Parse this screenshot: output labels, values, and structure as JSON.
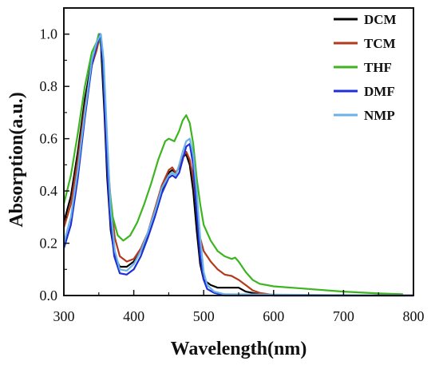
{
  "chart_data": {
    "type": "line",
    "xlabel": "Wavelength(nm)",
    "ylabel": "Absorption(a.u.)",
    "xlim": [
      300,
      800
    ],
    "ylim": [
      0,
      1.1
    ],
    "x_ticks": [
      300,
      400,
      500,
      600,
      700,
      800
    ],
    "x_tick_labels": [
      "300",
      "400",
      "500",
      "600",
      "700",
      "800"
    ],
    "y_ticks": [
      0,
      0.2,
      0.4,
      0.6,
      0.8,
      1.0
    ],
    "y_tick_labels": [
      "0.0",
      "0.2",
      "0.4",
      "0.6",
      "0.8",
      "1.0"
    ],
    "grid": false,
    "legend_position": "top-right",
    "series": [
      {
        "name": "DCM",
        "color": "#000000",
        "points": [
          [
            300,
            0.28
          ],
          [
            310,
            0.38
          ],
          [
            320,
            0.55
          ],
          [
            330,
            0.75
          ],
          [
            340,
            0.9
          ],
          [
            347,
            0.96
          ],
          [
            350,
            1.0
          ],
          [
            353,
            0.96
          ],
          [
            358,
            0.7
          ],
          [
            362,
            0.45
          ],
          [
            367,
            0.25
          ],
          [
            373,
            0.15
          ],
          [
            380,
            0.11
          ],
          [
            390,
            0.11
          ],
          [
            400,
            0.13
          ],
          [
            410,
            0.17
          ],
          [
            420,
            0.23
          ],
          [
            430,
            0.31
          ],
          [
            440,
            0.4
          ],
          [
            450,
            0.47
          ],
          [
            455,
            0.48
          ],
          [
            460,
            0.47
          ],
          [
            465,
            0.49
          ],
          [
            470,
            0.53
          ],
          [
            475,
            0.54
          ],
          [
            480,
            0.5
          ],
          [
            485,
            0.4
          ],
          [
            490,
            0.25
          ],
          [
            495,
            0.12
          ],
          [
            500,
            0.06
          ],
          [
            510,
            0.04
          ],
          [
            520,
            0.03
          ],
          [
            540,
            0.03
          ],
          [
            550,
            0.03
          ],
          [
            560,
            0.015
          ],
          [
            580,
            0.005
          ],
          [
            600,
            0.0
          ],
          [
            800,
            0.0
          ]
        ]
      },
      {
        "name": "TCM",
        "color": "#b23a1e",
        "points": [
          [
            300,
            0.26
          ],
          [
            310,
            0.35
          ],
          [
            320,
            0.52
          ],
          [
            330,
            0.72
          ],
          [
            340,
            0.88
          ],
          [
            347,
            0.94
          ],
          [
            352,
            1.0
          ],
          [
            357,
            0.85
          ],
          [
            362,
            0.55
          ],
          [
            367,
            0.36
          ],
          [
            373,
            0.22
          ],
          [
            380,
            0.15
          ],
          [
            390,
            0.13
          ],
          [
            400,
            0.14
          ],
          [
            410,
            0.18
          ],
          [
            420,
            0.24
          ],
          [
            430,
            0.33
          ],
          [
            440,
            0.42
          ],
          [
            450,
            0.48
          ],
          [
            455,
            0.49
          ],
          [
            460,
            0.47
          ],
          [
            465,
            0.49
          ],
          [
            470,
            0.53
          ],
          [
            475,
            0.55
          ],
          [
            480,
            0.52
          ],
          [
            485,
            0.45
          ],
          [
            490,
            0.33
          ],
          [
            495,
            0.22
          ],
          [
            500,
            0.17
          ],
          [
            510,
            0.13
          ],
          [
            520,
            0.1
          ],
          [
            530,
            0.08
          ],
          [
            540,
            0.075
          ],
          [
            550,
            0.06
          ],
          [
            560,
            0.04
          ],
          [
            570,
            0.02
          ],
          [
            580,
            0.01
          ],
          [
            600,
            0.002
          ],
          [
            800,
            0.0
          ]
        ]
      },
      {
        "name": "THF",
        "color": "#3cb521",
        "points": [
          [
            300,
            0.35
          ],
          [
            310,
            0.46
          ],
          [
            320,
            0.62
          ],
          [
            330,
            0.8
          ],
          [
            340,
            0.93
          ],
          [
            347,
            0.97
          ],
          [
            350,
            1.0
          ],
          [
            355,
            0.92
          ],
          [
            360,
            0.65
          ],
          [
            365,
            0.42
          ],
          [
            370,
            0.3
          ],
          [
            377,
            0.23
          ],
          [
            385,
            0.21
          ],
          [
            395,
            0.23
          ],
          [
            405,
            0.28
          ],
          [
            415,
            0.35
          ],
          [
            425,
            0.43
          ],
          [
            435,
            0.52
          ],
          [
            445,
            0.59
          ],
          [
            450,
            0.6
          ],
          [
            458,
            0.59
          ],
          [
            465,
            0.63
          ],
          [
            470,
            0.67
          ],
          [
            475,
            0.69
          ],
          [
            480,
            0.66
          ],
          [
            485,
            0.58
          ],
          [
            490,
            0.45
          ],
          [
            495,
            0.35
          ],
          [
            500,
            0.27
          ],
          [
            510,
            0.21
          ],
          [
            520,
            0.17
          ],
          [
            530,
            0.15
          ],
          [
            540,
            0.14
          ],
          [
            545,
            0.145
          ],
          [
            550,
            0.13
          ],
          [
            560,
            0.09
          ],
          [
            570,
            0.06
          ],
          [
            580,
            0.045
          ],
          [
            600,
            0.035
          ],
          [
            650,
            0.025
          ],
          [
            700,
            0.015
          ],
          [
            750,
            0.008
          ],
          [
            785,
            0.005
          ]
        ]
      },
      {
        "name": "DMF",
        "color": "#1e2fd6",
        "points": [
          [
            300,
            0.18
          ],
          [
            310,
            0.27
          ],
          [
            320,
            0.45
          ],
          [
            330,
            0.68
          ],
          [
            340,
            0.88
          ],
          [
            347,
            0.96
          ],
          [
            352,
            1.0
          ],
          [
            356,
            0.88
          ],
          [
            361,
            0.55
          ],
          [
            366,
            0.3
          ],
          [
            372,
            0.15
          ],
          [
            380,
            0.085
          ],
          [
            390,
            0.08
          ],
          [
            400,
            0.1
          ],
          [
            410,
            0.15
          ],
          [
            420,
            0.22
          ],
          [
            430,
            0.3
          ],
          [
            440,
            0.39
          ],
          [
            450,
            0.45
          ],
          [
            455,
            0.46
          ],
          [
            460,
            0.45
          ],
          [
            465,
            0.47
          ],
          [
            470,
            0.52
          ],
          [
            475,
            0.57
          ],
          [
            480,
            0.58
          ],
          [
            485,
            0.5
          ],
          [
            490,
            0.32
          ],
          [
            495,
            0.15
          ],
          [
            500,
            0.06
          ],
          [
            505,
            0.025
          ],
          [
            515,
            0.01
          ],
          [
            530,
            0.0
          ],
          [
            800,
            0.0
          ]
        ]
      },
      {
        "name": "NMP",
        "color": "#6ab2e8",
        "points": [
          [
            300,
            0.2
          ],
          [
            310,
            0.3
          ],
          [
            320,
            0.48
          ],
          [
            330,
            0.7
          ],
          [
            340,
            0.9
          ],
          [
            347,
            0.97
          ],
          [
            353,
            1.0
          ],
          [
            357,
            0.9
          ],
          [
            362,
            0.6
          ],
          [
            367,
            0.33
          ],
          [
            373,
            0.17
          ],
          [
            380,
            0.1
          ],
          [
            390,
            0.095
          ],
          [
            400,
            0.12
          ],
          [
            410,
            0.17
          ],
          [
            420,
            0.24
          ],
          [
            430,
            0.32
          ],
          [
            440,
            0.41
          ],
          [
            450,
            0.46
          ],
          [
            455,
            0.47
          ],
          [
            460,
            0.46
          ],
          [
            465,
            0.5
          ],
          [
            470,
            0.55
          ],
          [
            475,
            0.59
          ],
          [
            480,
            0.6
          ],
          [
            485,
            0.54
          ],
          [
            490,
            0.4
          ],
          [
            495,
            0.22
          ],
          [
            500,
            0.09
          ],
          [
            505,
            0.04
          ],
          [
            515,
            0.015
          ],
          [
            530,
            0.005
          ],
          [
            800,
            0.0
          ]
        ]
      }
    ]
  }
}
